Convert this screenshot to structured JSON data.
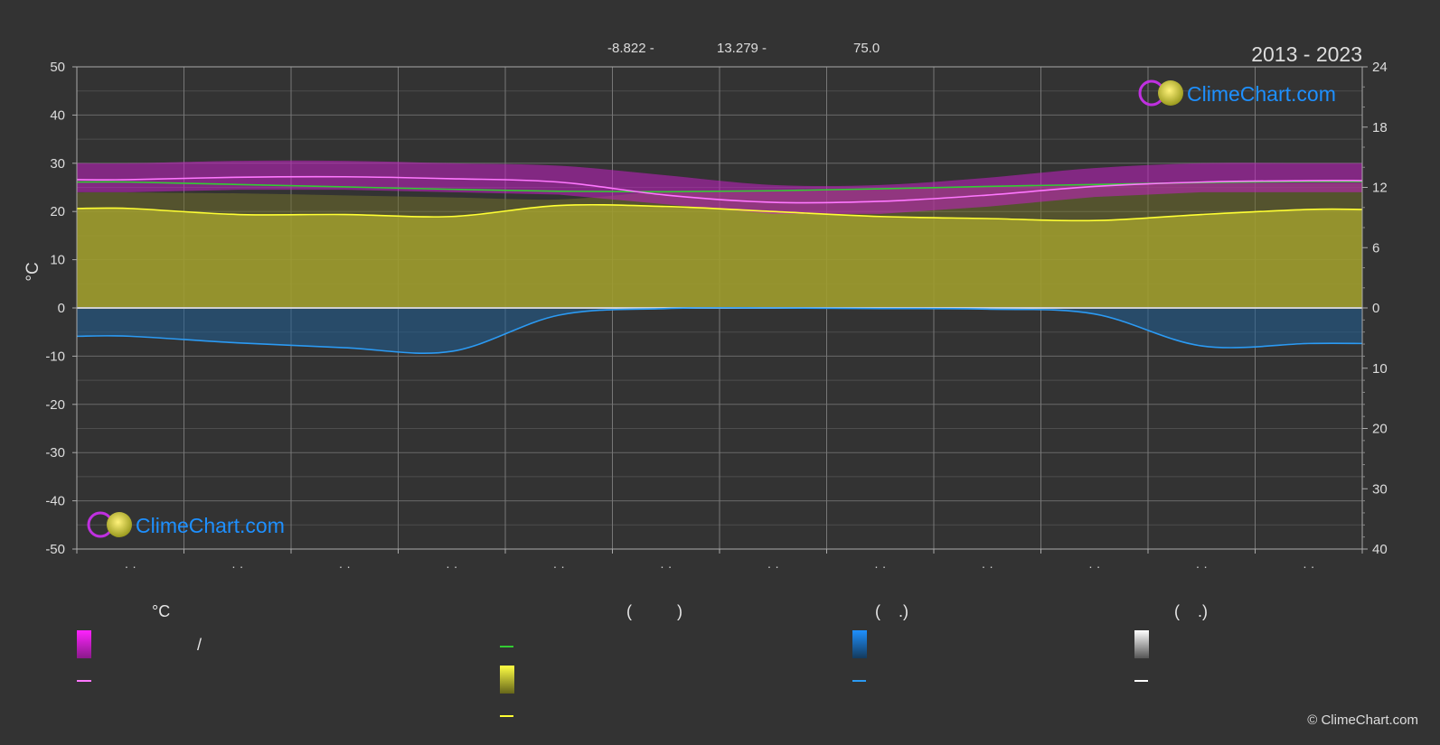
{
  "header": {
    "period": "2013 - 2023",
    "coords": [
      "-8.822 -",
      "13.279 -",
      "75.0"
    ]
  },
  "branding": {
    "logo_text": "ClimeChart.com",
    "copyright": "© ClimeChart.com"
  },
  "colors": {
    "background": "#333333",
    "sunshine_band": "#d7d433",
    "temp_band": "#cc22cc",
    "rain_band": "#1f6fb0",
    "sea_line": "#33cc33",
    "temp_mean_line": "#ff77ff",
    "sunshine_line": "#ffff33",
    "rain_line": "#2b9af3",
    "snow_line": "#ffffff",
    "logo_blue": "#1e90ff"
  },
  "chart_data": {
    "type": "area",
    "left_axis": {
      "label": "°C",
      "ticks": [
        50,
        40,
        30,
        20,
        10,
        0,
        -10,
        -20,
        -30,
        -40,
        -50
      ],
      "range": [
        -50,
        50
      ]
    },
    "right_axis_top": {
      "label": "",
      "ticks": [
        24,
        18,
        12,
        6,
        0
      ],
      "range": [
        0,
        24
      ]
    },
    "right_axis_bottom": {
      "label": "",
      "ticks": [
        0,
        10,
        20,
        30,
        40
      ],
      "range": [
        0,
        40
      ]
    },
    "x_months": 12,
    "month_labels": [
      "· ·",
      "· ·",
      "· ·",
      "· ·",
      "· ·",
      "· ·",
      "· ·",
      "· ·",
      "· ·",
      "· ·",
      "· ·",
      "· ·"
    ],
    "series": [
      {
        "key": "sea_temp",
        "unit": "°C",
        "values": [
          26.1,
          25.6,
          25.1,
          24.6,
          24.2,
          24.1,
          24.3,
          24.7,
          25.2,
          25.6,
          26.0,
          26.2
        ]
      },
      {
        "key": "temp_mean",
        "unit": "°C",
        "values": [
          26.6,
          27.1,
          27.2,
          26.8,
          26.1,
          23.4,
          21.9,
          22.1,
          23.4,
          25.2,
          26.1,
          26.4
        ]
      },
      {
        "key": "temp_band_max",
        "unit": "°C",
        "values": [
          30.0,
          30.5,
          30.5,
          30.0,
          29.5,
          27.5,
          25.5,
          25.5,
          27.0,
          29.0,
          30.0,
          30.0
        ]
      },
      {
        "key": "temp_band_min",
        "unit": "°C",
        "values": [
          24.0,
          24.5,
          24.5,
          24.0,
          23.5,
          21.5,
          19.5,
          19.5,
          21.0,
          23.0,
          24.0,
          24.0
        ]
      },
      {
        "key": "sunshine_hours",
        "unit": "h",
        "values": [
          9.9,
          9.3,
          9.3,
          9.1,
          10.2,
          10.1,
          9.6,
          9.1,
          8.9,
          8.7,
          9.3,
          9.8
        ]
      },
      {
        "key": "daylight_hours",
        "unit": "h",
        "values": [
          11.5,
          11.4,
          11.2,
          11.0,
          10.8,
          11.6,
          11.7,
          11.9,
          12.1,
          12.3,
          12.4,
          12.4
        ]
      },
      {
        "key": "precipitation",
        "unit": "mm",
        "values": [
          4.7,
          5.8,
          6.6,
          7.2,
          1.2,
          0.1,
          0.0,
          0.1,
          0.2,
          1.0,
          6.3,
          5.9
        ]
      }
    ]
  },
  "legend": {
    "col1": {
      "title": "°C",
      "row1_sep": "/"
    },
    "col2": {
      "title": "(          )"
    },
    "col3": {
      "title": "(    .)"
    },
    "col4": {
      "title": "(    .)"
    }
  }
}
